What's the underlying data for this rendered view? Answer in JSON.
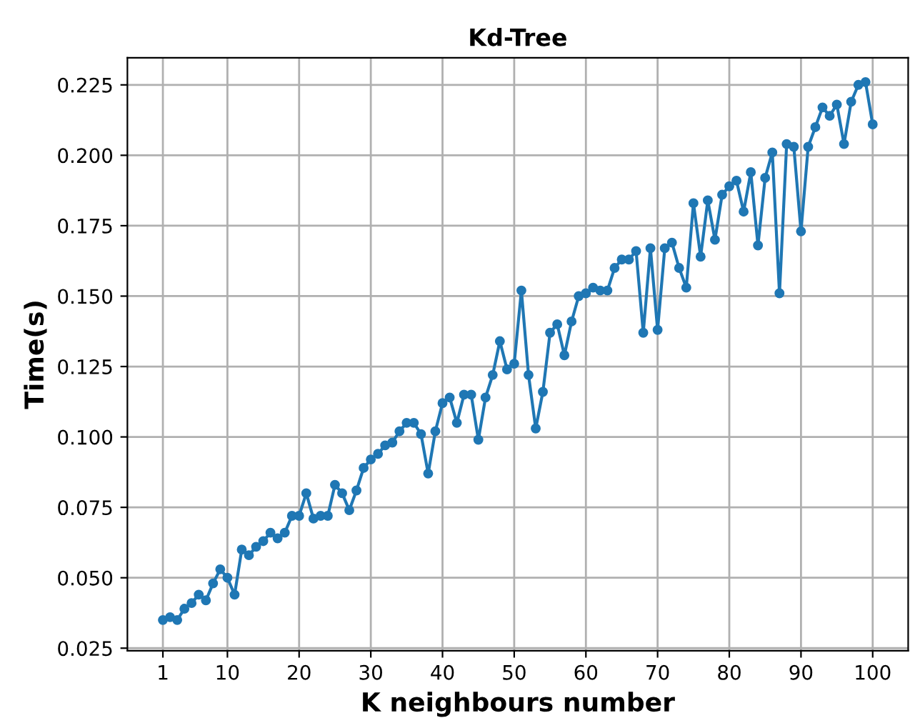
{
  "chart_data": {
    "type": "line",
    "title": "Kd-Tree",
    "xlabel": "K neighbours number",
    "ylabel": "Time(s)",
    "x": [
      1,
      2,
      3,
      4,
      5,
      6,
      7,
      8,
      9,
      10,
      11,
      12,
      13,
      14,
      15,
      16,
      17,
      18,
      19,
      20,
      21,
      22,
      23,
      24,
      25,
      26,
      27,
      28,
      29,
      30,
      31,
      32,
      33,
      34,
      35,
      36,
      37,
      38,
      39,
      40,
      41,
      42,
      43,
      44,
      45,
      46,
      47,
      48,
      49,
      50,
      51,
      52,
      53,
      54,
      55,
      56,
      57,
      58,
      59,
      60,
      61,
      62,
      63,
      64,
      65,
      66,
      67,
      68,
      69,
      70,
      71,
      72,
      73,
      74,
      75,
      76,
      77,
      78,
      79,
      80,
      81,
      82,
      83,
      84,
      85,
      86,
      87,
      88,
      89,
      90,
      91,
      92,
      93,
      94,
      95,
      96,
      97,
      98,
      99,
      100
    ],
    "series": [
      {
        "color": "#1f77b4",
        "values": [
          0.035,
          0.036,
          0.035,
          0.039,
          0.041,
          0.044,
          0.042,
          0.048,
          0.053,
          0.05,
          0.044,
          0.06,
          0.058,
          0.061,
          0.063,
          0.066,
          0.064,
          0.066,
          0.072,
          0.072,
          0.08,
          0.071,
          0.072,
          0.072,
          0.083,
          0.08,
          0.074,
          0.081,
          0.089,
          0.092,
          0.094,
          0.097,
          0.098,
          0.102,
          0.105,
          0.105,
          0.101,
          0.087,
          0.102,
          0.112,
          0.114,
          0.105,
          0.115,
          0.115,
          0.099,
          0.114,
          0.122,
          0.134,
          0.124,
          0.126,
          0.152,
          0.122,
          0.103,
          0.116,
          0.137,
          0.14,
          0.129,
          0.141,
          0.15,
          0.151,
          0.153,
          0.152,
          0.152,
          0.16,
          0.163,
          0.163,
          0.166,
          0.137,
          0.167,
          0.138,
          0.167,
          0.169,
          0.16,
          0.153,
          0.183,
          0.164,
          0.184,
          0.17,
          0.186,
          0.189,
          0.191,
          0.18,
          0.194,
          0.168,
          0.192,
          0.201,
          0.151,
          0.204,
          0.203,
          0.173,
          0.203,
          0.21,
          0.217,
          0.214,
          0.218,
          0.204,
          0.219,
          0.225,
          0.226,
          0.211
        ]
      }
    ],
    "xlim": [
      -3.95,
      104.95
    ],
    "ylim": [
      0.0241,
      0.2346
    ],
    "xticks": [
      1,
      10,
      20,
      30,
      40,
      50,
      60,
      70,
      80,
      90,
      100
    ],
    "yticks": [
      {
        "value": 0.025,
        "label": "0.025"
      },
      {
        "value": 0.05,
        "label": "0.050"
      },
      {
        "value": 0.075,
        "label": "0.075"
      },
      {
        "value": 0.1,
        "label": "0.100"
      },
      {
        "value": 0.125,
        "label": "0.125"
      },
      {
        "value": 0.15,
        "label": "0.150"
      },
      {
        "value": 0.175,
        "label": "0.175"
      },
      {
        "value": 0.2,
        "label": "0.200"
      },
      {
        "value": 0.225,
        "label": "0.225"
      }
    ],
    "grid": true,
    "marker": "circle",
    "line_style": "solid"
  }
}
